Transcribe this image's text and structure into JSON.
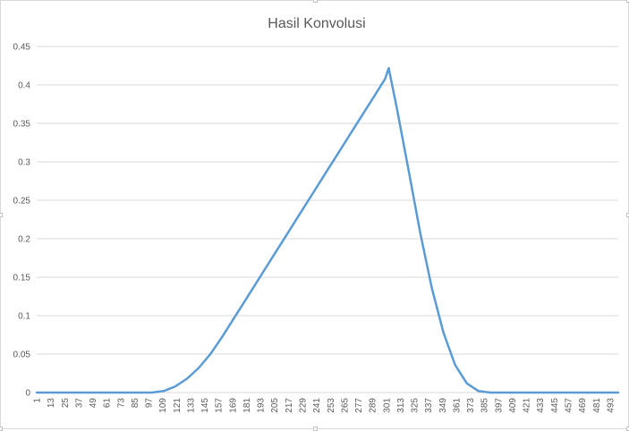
{
  "chart_data": {
    "type": "line",
    "title": "Hasil Konvolusi",
    "xlabel": "",
    "ylabel": "",
    "ylim": [
      0,
      0.45
    ],
    "yticks": [
      "0",
      "0.05",
      "0.1",
      "0.15",
      "0.2",
      "0.25",
      "0.3",
      "0.35",
      "0.4",
      "0.45"
    ],
    "xticks": [
      "1",
      "13",
      "25",
      "37",
      "49",
      "61",
      "73",
      "85",
      "97",
      "109",
      "121",
      "133",
      "145",
      "157",
      "169",
      "181",
      "193",
      "205",
      "217",
      "229",
      "241",
      "253",
      "265",
      "277",
      "289",
      "301",
      "313",
      "325",
      "337",
      "349",
      "361",
      "373",
      "385",
      "397",
      "409",
      "421",
      "433",
      "445",
      "457",
      "469",
      "481",
      "493"
    ],
    "x_range": [
      1,
      500
    ],
    "grid": true,
    "legend": "none",
    "series": [
      {
        "color": "#5b9bd5",
        "x": [
          1,
          100,
          110,
          120,
          130,
          140,
          150,
          160,
          170,
          180,
          190,
          200,
          210,
          220,
          230,
          240,
          250,
          260,
          270,
          280,
          290,
          300,
          303,
          310,
          320,
          330,
          340,
          350,
          360,
          370,
          380,
          390,
          397,
          400,
          450,
          500
        ],
        "y": [
          0,
          0,
          0.002,
          0.008,
          0.018,
          0.032,
          0.05,
          0.072,
          0.096,
          0.12,
          0.144,
          0.168,
          0.192,
          0.216,
          0.24,
          0.264,
          0.288,
          0.312,
          0.336,
          0.36,
          0.384,
          0.408,
          0.422,
          0.37,
          0.29,
          0.208,
          0.136,
          0.078,
          0.036,
          0.012,
          0.002,
          0.0,
          0,
          0,
          0,
          0
        ]
      }
    ]
  }
}
